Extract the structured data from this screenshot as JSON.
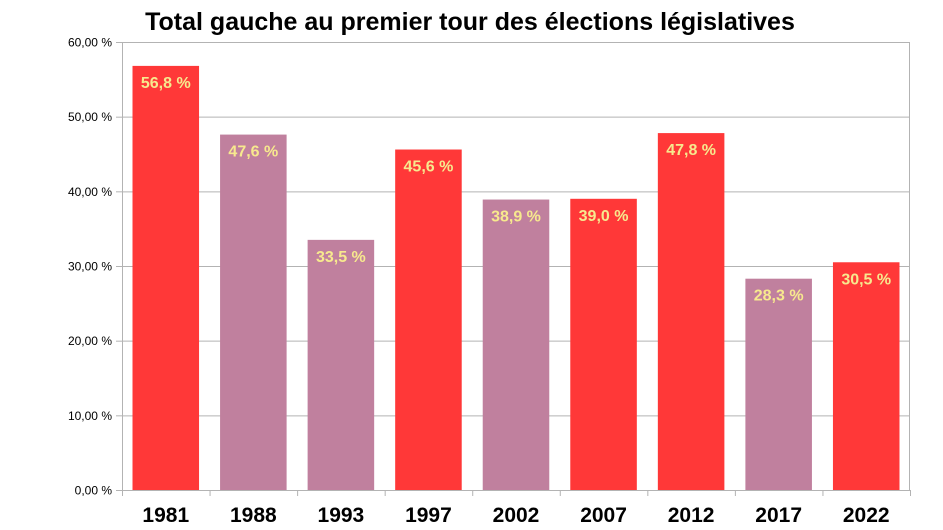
{
  "chart_data": {
    "type": "bar",
    "title": "Total gauche au premier tour des élections législatives",
    "xlabel": "",
    "ylabel": "",
    "categories": [
      "1981",
      "1988",
      "1993",
      "1997",
      "2002",
      "2007",
      "2012",
      "2017",
      "2022"
    ],
    "values": [
      56.8,
      47.6,
      33.5,
      45.6,
      38.9,
      39.0,
      47.8,
      28.3,
      30.5
    ],
    "data_labels": [
      "56,8 %",
      "47,6 %",
      "33,5 %",
      "45,6 %",
      "38,9 %",
      "39,0 %",
      "47,8 %",
      "28,3 %",
      "30,5 %"
    ],
    "bar_colors": [
      "#ff3838",
      "#c0809e",
      "#c0809e",
      "#ff3838",
      "#c0809e",
      "#ff3838",
      "#ff3838",
      "#c0809e",
      "#ff3838"
    ],
    "yticks": [
      0,
      10,
      20,
      30,
      40,
      50,
      60
    ],
    "ytick_labels": [
      "0,00 %",
      "10,00 %",
      "20,00 %",
      "30,00 %",
      "40,00 %",
      "50,00 %",
      "60,00 %"
    ],
    "ylim": [
      0,
      60
    ],
    "grid": true,
    "label_color": "#f7e98e",
    "grid_color": "#b3b3b3"
  }
}
